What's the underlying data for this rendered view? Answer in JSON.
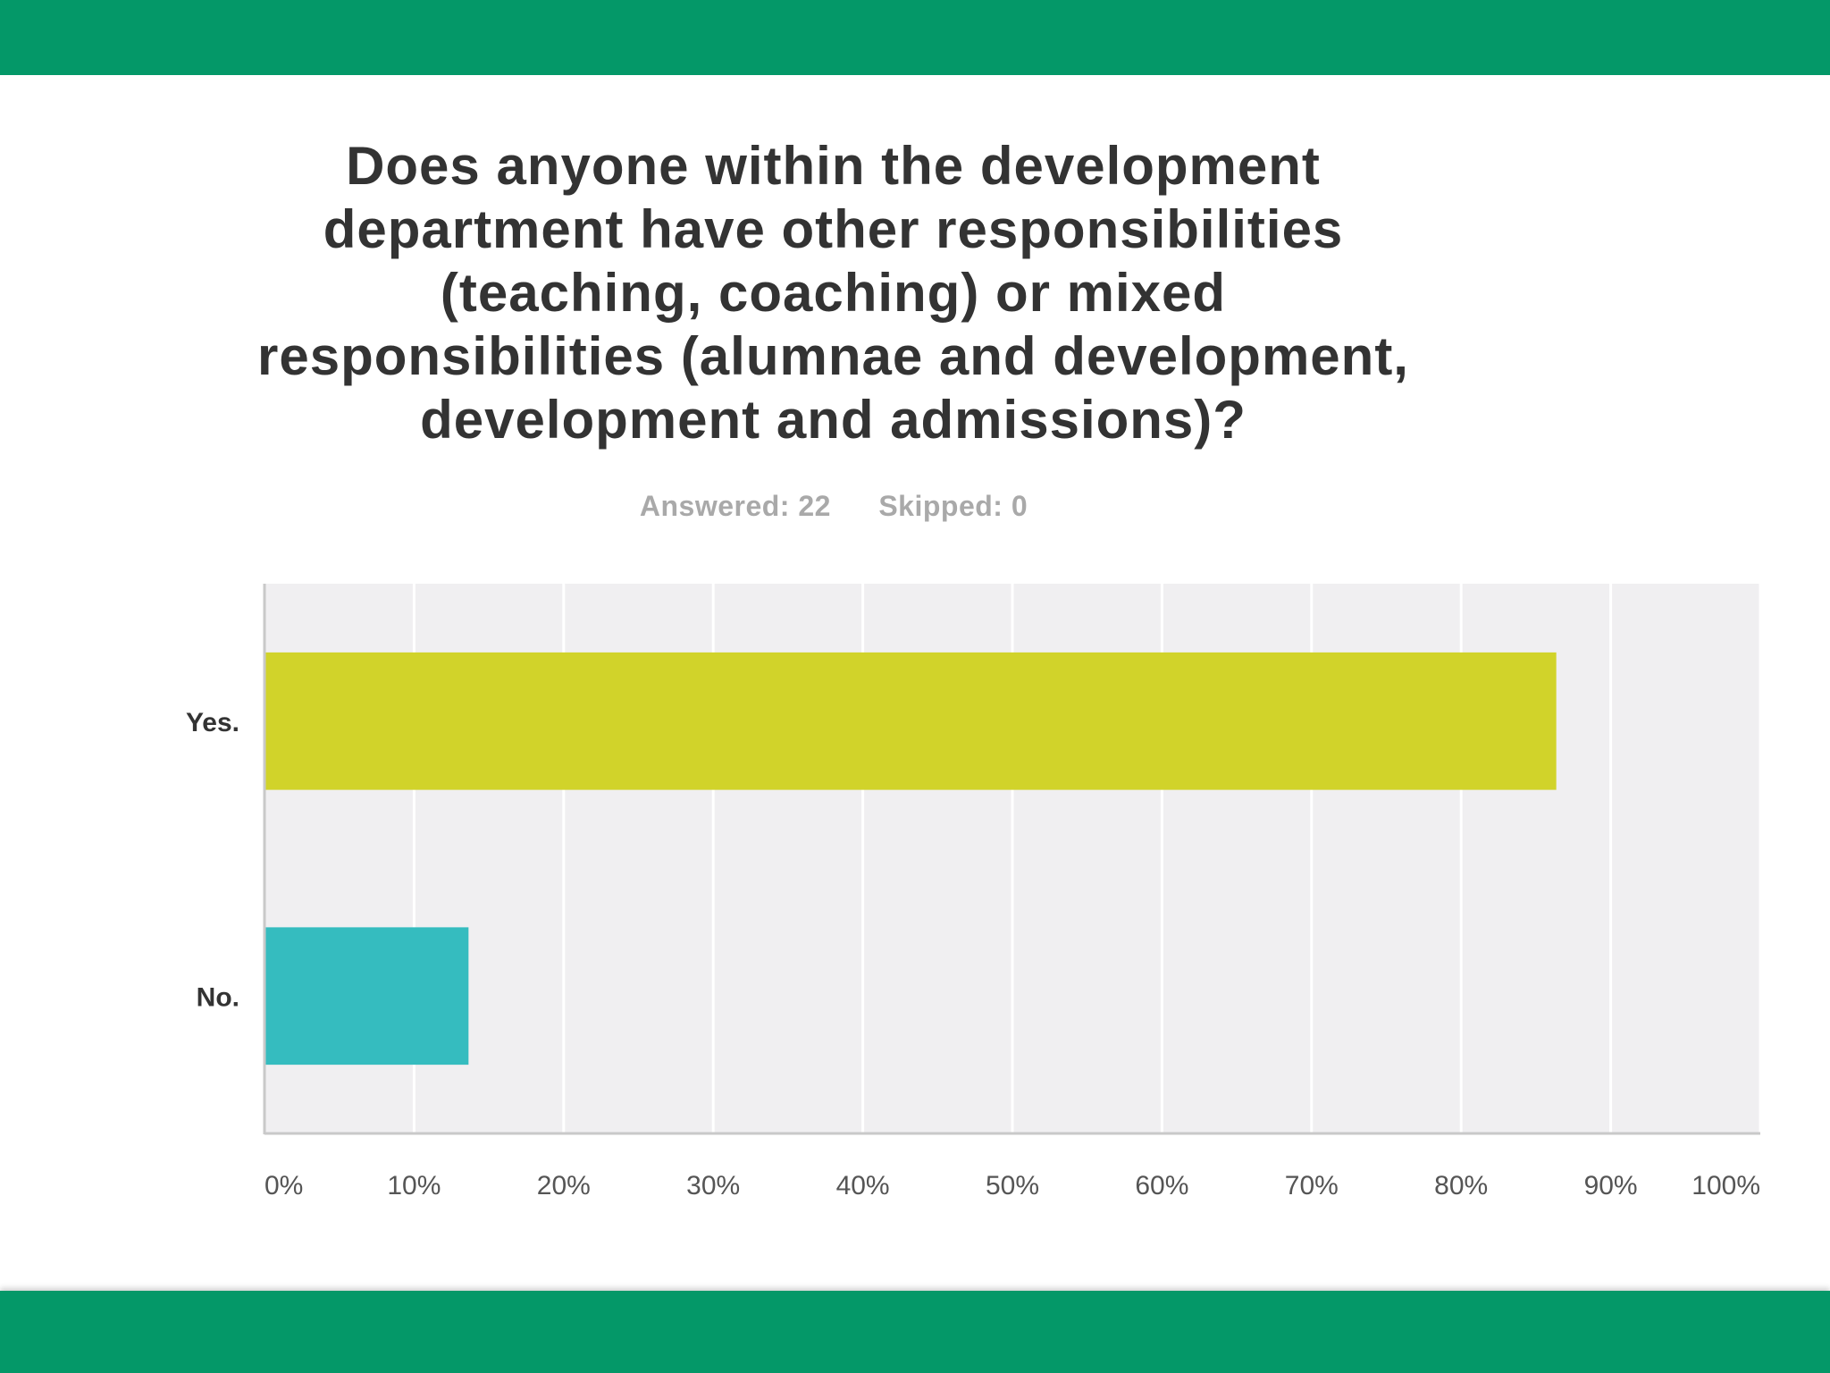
{
  "colors": {
    "band": "#049868",
    "plot_bg": "#f0eff1",
    "grid": "#ffffff",
    "axis": "#c9c9c9",
    "yes_bar": "#d1d32a",
    "no_bar": "#35bcbf",
    "tick_text": "#555555",
    "cat_text": "#333333"
  },
  "header": {
    "title_lines": [
      "Does anyone within the development",
      "department have other responsibilities",
      "(teaching, coaching) or mixed",
      "responsibilities (alumnae and development,",
      "development and admissions)?"
    ],
    "answered": "Answered: 22",
    "skipped": "Skipped: 0"
  },
  "chart_data": {
    "type": "bar",
    "orientation": "horizontal",
    "title": "Does anyone within the development department have other responsibilities (teaching, coaching) or mixed responsibilities (alumnae and development, development and admissions)?",
    "categories": [
      "Yes.",
      "No."
    ],
    "values": [
      86.36,
      13.64
    ],
    "unit": "%",
    "xlim": [
      0,
      100
    ],
    "xticks": [
      0,
      10,
      20,
      30,
      40,
      50,
      60,
      70,
      80,
      90,
      100
    ],
    "xtick_labels": [
      "0%",
      "10%",
      "20%",
      "30%",
      "40%",
      "50%",
      "60%",
      "70%",
      "80%",
      "90%",
      "100%"
    ],
    "grid": true,
    "legend": "none"
  }
}
